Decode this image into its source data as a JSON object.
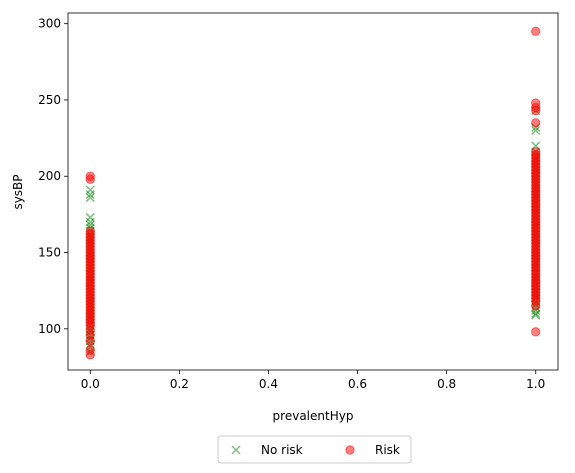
{
  "chart_data": {
    "type": "scatter",
    "xlabel": "prevalentHyp",
    "ylabel": "sysBP",
    "xlim": [
      -0.05,
      1.05
    ],
    "ylim": [
      73,
      307
    ],
    "x_ticks": [
      0.0,
      0.2,
      0.4,
      0.6,
      0.8,
      1.0
    ],
    "x_tick_labels": [
      "0.0",
      "0.2",
      "0.4",
      "0.6",
      "0.8",
      "1.0"
    ],
    "y_ticks": [
      100,
      150,
      200,
      250,
      300
    ],
    "y_tick_labels": [
      "100",
      "150",
      "200",
      "250",
      "300"
    ],
    "grid": false,
    "legend_placement": "bottom-center, below axes",
    "series": [
      {
        "name": "No risk",
        "marker": "x",
        "color": "#008000",
        "alpha": 0.5,
        "points": [
          [
            0,
            85
          ],
          [
            0,
            88
          ],
          [
            0,
            90
          ],
          [
            0,
            92
          ],
          [
            0,
            94
          ],
          [
            0,
            96
          ],
          [
            0,
            98
          ],
          [
            0,
            100
          ],
          [
            0,
            102
          ],
          [
            0,
            104
          ],
          [
            0,
            106
          ],
          [
            0,
            108
          ],
          [
            0,
            110
          ],
          [
            0,
            112
          ],
          [
            0,
            114
          ],
          [
            0,
            116
          ],
          [
            0,
            118
          ],
          [
            0,
            120
          ],
          [
            0,
            122
          ],
          [
            0,
            124
          ],
          [
            0,
            126
          ],
          [
            0,
            128
          ],
          [
            0,
            130
          ],
          [
            0,
            132
          ],
          [
            0,
            134
          ],
          [
            0,
            136
          ],
          [
            0,
            138
          ],
          [
            0,
            140
          ],
          [
            0,
            142
          ],
          [
            0,
            144
          ],
          [
            0,
            146
          ],
          [
            0,
            148
          ],
          [
            0,
            150
          ],
          [
            0,
            152
          ],
          [
            0,
            154
          ],
          [
            0,
            156
          ],
          [
            0,
            158
          ],
          [
            0,
            160
          ],
          [
            0,
            162
          ],
          [
            0,
            164
          ],
          [
            0,
            166
          ],
          [
            0,
            168
          ],
          [
            0,
            170
          ],
          [
            0,
            173
          ],
          [
            0,
            186
          ],
          [
            0,
            188
          ],
          [
            0,
            191
          ],
          [
            1,
            109
          ],
          [
            1,
            110
          ],
          [
            1,
            112
          ],
          [
            1,
            114
          ],
          [
            1,
            116
          ],
          [
            1,
            118
          ],
          [
            1,
            120
          ],
          [
            1,
            122
          ],
          [
            1,
            124
          ],
          [
            1,
            126
          ],
          [
            1,
            128
          ],
          [
            1,
            130
          ],
          [
            1,
            132
          ],
          [
            1,
            134
          ],
          [
            1,
            136
          ],
          [
            1,
            138
          ],
          [
            1,
            140
          ],
          [
            1,
            142
          ],
          [
            1,
            144
          ],
          [
            1,
            146
          ],
          [
            1,
            148
          ],
          [
            1,
            150
          ],
          [
            1,
            152
          ],
          [
            1,
            154
          ],
          [
            1,
            156
          ],
          [
            1,
            158
          ],
          [
            1,
            160
          ],
          [
            1,
            162
          ],
          [
            1,
            164
          ],
          [
            1,
            166
          ],
          [
            1,
            168
          ],
          [
            1,
            170
          ],
          [
            1,
            172
          ],
          [
            1,
            174
          ],
          [
            1,
            176
          ],
          [
            1,
            178
          ],
          [
            1,
            180
          ],
          [
            1,
            182
          ],
          [
            1,
            184
          ],
          [
            1,
            186
          ],
          [
            1,
            188
          ],
          [
            1,
            190
          ],
          [
            1,
            192
          ],
          [
            1,
            194
          ],
          [
            1,
            196
          ],
          [
            1,
            198
          ],
          [
            1,
            200
          ],
          [
            1,
            202
          ],
          [
            1,
            204
          ],
          [
            1,
            206
          ],
          [
            1,
            208
          ],
          [
            1,
            210
          ],
          [
            1,
            212
          ],
          [
            1,
            214
          ],
          [
            1,
            216
          ],
          [
            1,
            220
          ],
          [
            1,
            230
          ],
          [
            1,
            232
          ],
          [
            1,
            243
          ]
        ]
      },
      {
        "name": "Risk",
        "marker": "o",
        "color": "#ff0000",
        "alpha": 0.5,
        "points": [
          [
            0,
            83
          ],
          [
            0,
            86
          ],
          [
            0,
            92
          ],
          [
            0,
            96
          ],
          [
            0,
            99
          ],
          [
            0,
            102
          ],
          [
            0,
            104
          ],
          [
            0,
            106
          ],
          [
            0,
            108
          ],
          [
            0,
            110
          ],
          [
            0,
            112
          ],
          [
            0,
            114
          ],
          [
            0,
            116
          ],
          [
            0,
            118
          ],
          [
            0,
            120
          ],
          [
            0,
            122
          ],
          [
            0,
            124
          ],
          [
            0,
            126
          ],
          [
            0,
            128
          ],
          [
            0,
            130
          ],
          [
            0,
            132
          ],
          [
            0,
            134
          ],
          [
            0,
            136
          ],
          [
            0,
            138
          ],
          [
            0,
            140
          ],
          [
            0,
            142
          ],
          [
            0,
            144
          ],
          [
            0,
            146
          ],
          [
            0,
            148
          ],
          [
            0,
            150
          ],
          [
            0,
            152
          ],
          [
            0,
            154
          ],
          [
            0,
            156
          ],
          [
            0,
            158
          ],
          [
            0,
            160
          ],
          [
            0,
            162
          ],
          [
            0,
            164
          ],
          [
            0,
            198
          ],
          [
            0,
            200
          ],
          [
            1,
            98
          ],
          [
            1,
            115
          ],
          [
            1,
            118
          ],
          [
            1,
            120
          ],
          [
            1,
            122
          ],
          [
            1,
            124
          ],
          [
            1,
            126
          ],
          [
            1,
            128
          ],
          [
            1,
            130
          ],
          [
            1,
            132
          ],
          [
            1,
            134
          ],
          [
            1,
            136
          ],
          [
            1,
            138
          ],
          [
            1,
            140
          ],
          [
            1,
            142
          ],
          [
            1,
            144
          ],
          [
            1,
            146
          ],
          [
            1,
            148
          ],
          [
            1,
            150
          ],
          [
            1,
            152
          ],
          [
            1,
            154
          ],
          [
            1,
            156
          ],
          [
            1,
            158
          ],
          [
            1,
            160
          ],
          [
            1,
            162
          ],
          [
            1,
            164
          ],
          [
            1,
            166
          ],
          [
            1,
            168
          ],
          [
            1,
            170
          ],
          [
            1,
            172
          ],
          [
            1,
            174
          ],
          [
            1,
            176
          ],
          [
            1,
            178
          ],
          [
            1,
            180
          ],
          [
            1,
            182
          ],
          [
            1,
            184
          ],
          [
            1,
            186
          ],
          [
            1,
            188
          ],
          [
            1,
            190
          ],
          [
            1,
            192
          ],
          [
            1,
            194
          ],
          [
            1,
            196
          ],
          [
            1,
            198
          ],
          [
            1,
            200
          ],
          [
            1,
            202
          ],
          [
            1,
            204
          ],
          [
            1,
            206
          ],
          [
            1,
            208
          ],
          [
            1,
            210
          ],
          [
            1,
            212
          ],
          [
            1,
            214
          ],
          [
            1,
            216
          ],
          [
            1,
            235
          ],
          [
            1,
            243
          ],
          [
            1,
            245
          ],
          [
            1,
            248
          ],
          [
            1,
            295
          ]
        ]
      }
    ]
  }
}
